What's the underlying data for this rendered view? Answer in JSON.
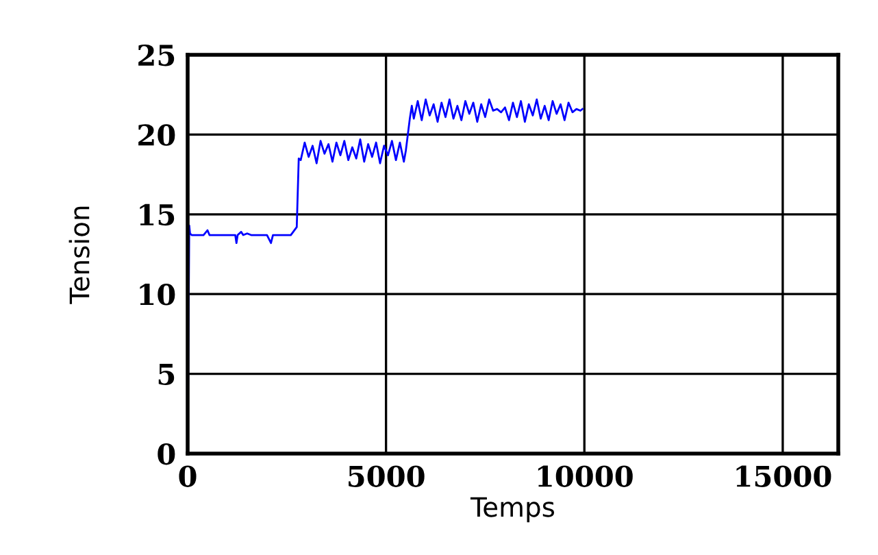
{
  "chart_data": {
    "type": "line",
    "xlabel": "Temps",
    "ylabel": "Tension",
    "xlim": [
      0,
      16400
    ],
    "ylim": [
      0,
      25
    ],
    "xticks": [
      0,
      5000,
      10000,
      15000
    ],
    "yticks": [
      0,
      5,
      10,
      15,
      20,
      25
    ],
    "grid": true,
    "legend": false,
    "marker": "none",
    "line_style": "solid",
    "series": [
      {
        "color": "#0000ff",
        "x": [
          0,
          40,
          60,
          100,
          400,
          500,
          550,
          1200,
          1230,
          1260,
          1350,
          1400,
          1500,
          1600,
          2000,
          2100,
          2150,
          2600,
          2750,
          2800,
          2850,
          2950,
          3050,
          3150,
          3250,
          3350,
          3450,
          3550,
          3650,
          3750,
          3850,
          3950,
          4050,
          4150,
          4250,
          4350,
          4450,
          4550,
          4650,
          4750,
          4850,
          4950,
          5050,
          5150,
          5250,
          5350,
          5450,
          5500,
          5600,
          5650,
          5700,
          5800,
          5900,
          6000,
          6100,
          6200,
          6300,
          6400,
          6500,
          6600,
          6700,
          6800,
          6900,
          7000,
          7100,
          7200,
          7300,
          7400,
          7500,
          7600,
          7700,
          7800,
          7900,
          8000,
          8100,
          8200,
          8300,
          8400,
          8500,
          8600,
          8700,
          8800,
          8900,
          9000,
          9100,
          9200,
          9300,
          9400,
          9500,
          9600,
          9700,
          9800,
          9900,
          9950
        ],
        "values": [
          0,
          14.3,
          13.8,
          13.7,
          13.7,
          14.0,
          13.7,
          13.7,
          13.2,
          13.7,
          13.9,
          13.7,
          13.8,
          13.7,
          13.7,
          13.2,
          13.7,
          13.7,
          14.2,
          18.5,
          18.4,
          19.5,
          18.6,
          19.3,
          18.2,
          19.6,
          18.8,
          19.4,
          18.3,
          19.5,
          18.7,
          19.6,
          18.4,
          19.2,
          18.5,
          19.7,
          18.3,
          19.4,
          18.6,
          19.5,
          18.2,
          19.3,
          18.7,
          19.6,
          18.4,
          19.5,
          18.3,
          19.0,
          21.0,
          21.8,
          21.0,
          22.1,
          20.9,
          22.2,
          21.2,
          21.9,
          20.8,
          22.0,
          21.1,
          22.2,
          21.0,
          21.8,
          20.9,
          22.1,
          21.3,
          22.0,
          20.8,
          21.9,
          21.1,
          22.2,
          21.5,
          21.6,
          21.4,
          21.7,
          20.9,
          22.0,
          21.1,
          22.1,
          20.8,
          21.9,
          21.2,
          22.2,
          21.0,
          21.8,
          20.9,
          22.1,
          21.3,
          21.9,
          20.9,
          22.0,
          21.4,
          21.6,
          21.5,
          21.6
        ]
      }
    ]
  }
}
